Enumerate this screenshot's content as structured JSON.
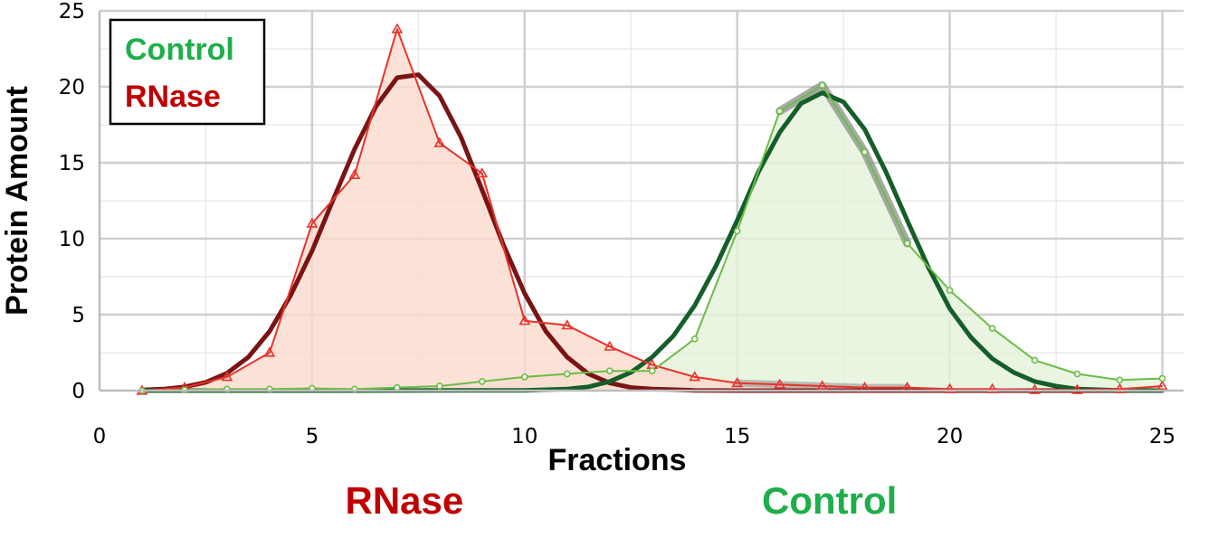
{
  "chart_data": {
    "type": "line",
    "xlabel": "Fractions",
    "ylabel": "Protein Amount",
    "xlim": [
      0,
      25.5
    ],
    "ylim": [
      0,
      25
    ],
    "x_ticks": [
      0,
      5,
      10,
      15,
      20,
      25
    ],
    "y_ticks": [
      0,
      5,
      10,
      15,
      20,
      25
    ],
    "grid": true,
    "legend": {
      "placement": "top-left",
      "entries": [
        {
          "label": "Control",
          "color": "#1fae4b"
        },
        {
          "label": "RNase",
          "color": "#c00000"
        }
      ]
    },
    "series": [
      {
        "name": "RNase",
        "kind": "data",
        "marker": "triangle",
        "color": "#e8322b",
        "fill": "#fbd9cd",
        "x": [
          1,
          2,
          3,
          4,
          5,
          6,
          7,
          8,
          9,
          10,
          11,
          12,
          13,
          14,
          15,
          16,
          17,
          18,
          19,
          20,
          21,
          22,
          23,
          24,
          25
        ],
        "y": [
          0,
          0.2,
          0.9,
          2.5,
          11,
          14.2,
          23.8,
          16.3,
          14.3,
          4.6,
          4.3,
          2.9,
          1.7,
          0.9,
          0.5,
          0.4,
          0.3,
          0.2,
          0.2,
          0.1,
          0.1,
          0.05,
          0.05,
          0.1,
          0.3
        ]
      },
      {
        "name": "Control",
        "kind": "data",
        "marker": "circle",
        "color": "#6abd45",
        "fill": "#e3f2d9",
        "x": [
          1,
          2,
          3,
          4,
          5,
          6,
          7,
          8,
          9,
          10,
          11,
          12,
          13,
          14,
          15,
          16,
          17,
          18,
          19,
          20,
          21,
          22,
          23,
          24,
          25
        ],
        "y": [
          0,
          0.05,
          0.1,
          0.1,
          0.15,
          0.1,
          0.2,
          0.3,
          0.6,
          0.9,
          1.1,
          1.3,
          1.3,
          3.4,
          10.5,
          18.4,
          20.1,
          15.7,
          9.7,
          6.6,
          4.1,
          2.0,
          1.1,
          0.7,
          0.8
        ]
      },
      {
        "kind": "fit",
        "color": "#7a1414",
        "x": [
          1,
          1.5,
          2,
          2.5,
          3,
          3.5,
          4,
          4.5,
          5,
          5.5,
          6,
          6.5,
          7,
          7.5,
          8,
          8.5,
          9,
          9.5,
          10,
          10.5,
          11,
          11.5,
          12,
          12.5,
          13,
          14,
          15,
          16,
          17,
          18,
          19,
          20,
          21,
          22,
          23,
          24,
          25
        ],
        "y": [
          0.05,
          0.1,
          0.25,
          0.55,
          1.15,
          2.2,
          3.9,
          6.3,
          9.2,
          12.6,
          15.9,
          18.7,
          20.6,
          20.8,
          19.4,
          16.7,
          13.2,
          9.6,
          6.4,
          3.9,
          2.2,
          1.1,
          0.5,
          0.2,
          0.1,
          0.02,
          0,
          0,
          0,
          0,
          0,
          0,
          0,
          0,
          0,
          0,
          0
        ]
      },
      {
        "kind": "fit",
        "color": "#155e2a",
        "x": [
          1,
          5,
          10,
          11,
          11.5,
          12,
          12.5,
          13,
          13.5,
          14,
          14.5,
          15,
          15.5,
          16,
          16.5,
          17,
          17.5,
          18,
          18.5,
          19,
          19.5,
          20,
          20.5,
          21,
          21.5,
          22,
          22.5,
          23,
          24,
          25
        ],
        "y": [
          0,
          0,
          0.02,
          0.1,
          0.25,
          0.6,
          1.2,
          2.2,
          3.6,
          5.6,
          8.2,
          11.2,
          14.4,
          17.0,
          18.9,
          19.6,
          19.0,
          17.2,
          14.4,
          11.2,
          8.1,
          5.4,
          3.5,
          2.1,
          1.2,
          0.6,
          0.3,
          0.1,
          0.02,
          0
        ]
      }
    ],
    "group_labels": [
      {
        "text": "RNase",
        "color": "#c00000",
        "at_x": 7
      },
      {
        "text": "Control",
        "color": "#1fae4b",
        "at_x": 17
      }
    ]
  }
}
